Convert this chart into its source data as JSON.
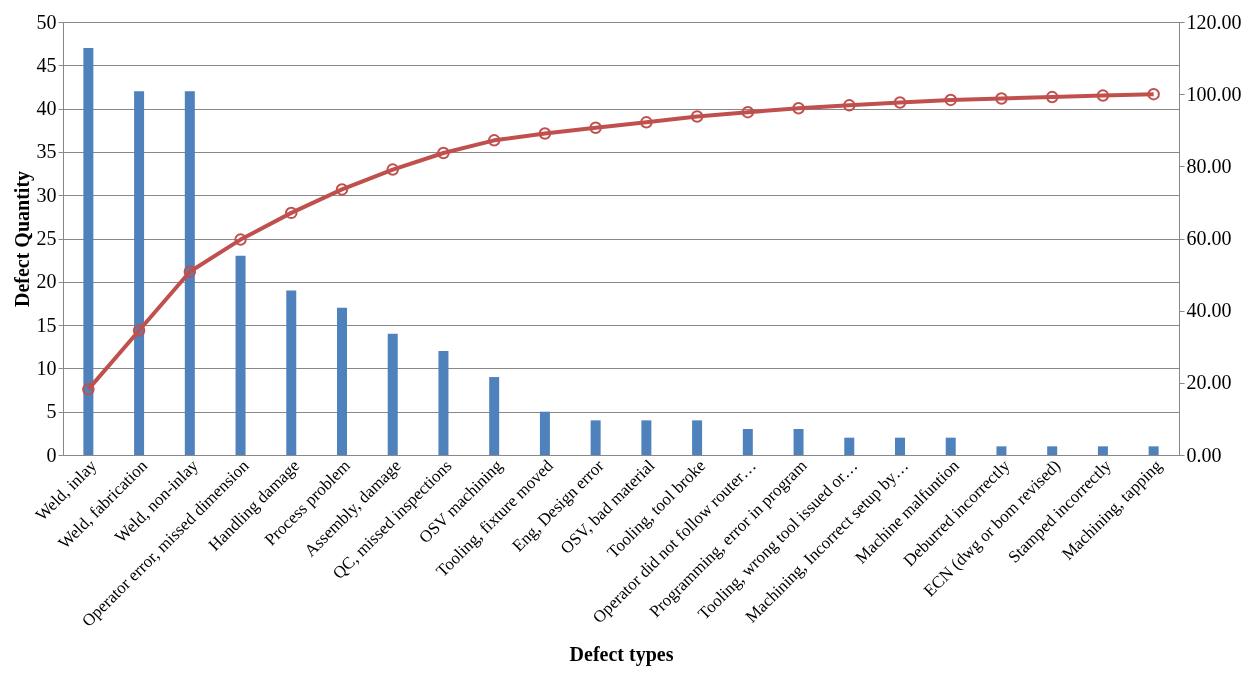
{
  "chart_data": {
    "type": "bar",
    "xlabel": "Defect types",
    "ylabel": "Defect Quantity",
    "categories": [
      "Weld, inlay",
      "Weld, fabrication",
      "Weld, non-inlay",
      "Operator error, missed dimension",
      "Handling damage",
      "Process problem",
      "Assembly, damage",
      "QC, missed inspections",
      "OSV machining",
      "Tooling, fixture moved",
      "Eng, Design error",
      "OSV, bad material",
      "Tooling, tool broke",
      "Operator did not follow router…",
      "Programming, error in program",
      "Tooling, wrong tool issued or…",
      "Machining, Incorrect setup by…",
      "Machine malfuntion",
      "Deburred incorrectly",
      "ECN (dwg or bom revised)",
      "Stamped incorrectly",
      "Machining, tapping"
    ],
    "series": [
      {
        "color": "#4f81bd",
        "values": [
          47,
          42,
          42,
          23,
          19,
          17,
          14,
          12,
          9,
          5,
          4,
          4,
          4,
          3,
          3,
          2,
          2,
          2,
          1,
          1,
          1,
          1
        ]
      },
      {
        "type": "line",
        "axis": "y2",
        "color": "#c0504d",
        "marker": "circle",
        "line_style": "solid",
        "values": [
          18.2,
          34.5,
          50.8,
          59.7,
          67.1,
          73.6,
          79.1,
          83.7,
          87.2,
          89.1,
          90.7,
          92.2,
          93.8,
          95.0,
          96.1,
          96.9,
          97.7,
          98.4,
          98.8,
          99.2,
          99.6,
          100.0
        ]
      }
    ],
    "ylim": [
      0,
      50
    ],
    "yticks": [
      0,
      5,
      10,
      15,
      20,
      25,
      30,
      35,
      40,
      45,
      50
    ],
    "y2lim": [
      0,
      120
    ],
    "y2ticks": [
      {
        "value": 0,
        "label": "0.00"
      },
      {
        "value": 20,
        "label": "20.00"
      },
      {
        "value": 40,
        "label": "40.00"
      },
      {
        "value": 60,
        "label": "60.00"
      },
      {
        "value": 80,
        "label": "80.00"
      },
      {
        "value": 100,
        "label": "100.00"
      },
      {
        "value": 120,
        "label": "120.00"
      }
    ],
    "grid": "y"
  }
}
